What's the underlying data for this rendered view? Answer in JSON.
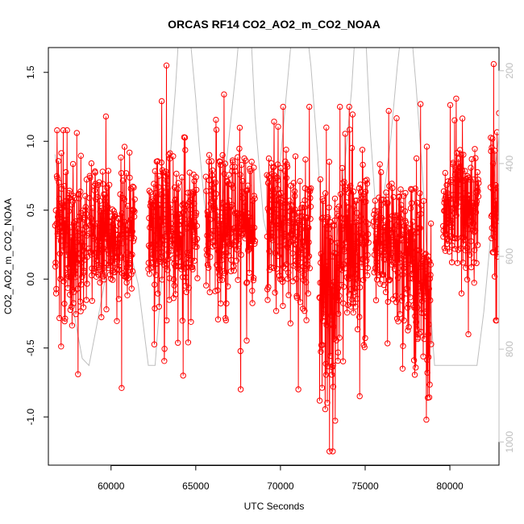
{
  "chart_data": {
    "type": "scatter",
    "title": "ORCAS RF14 CO2_AO2_m_CO2_NOAA",
    "xlabel": "UTC Seconds",
    "ylabel": "CO2_AO2_m_CO2_NOAA",
    "xlim": [
      56300,
      82900
    ],
    "ylim": [
      -1.35,
      1.68
    ],
    "y2lim": [
      150,
      1050
    ],
    "y2_reversed": true,
    "x_ticks": [
      60000,
      65000,
      70000,
      75000,
      80000
    ],
    "x_tick_labels": [
      "60000",
      "65000",
      "70000",
      "75000",
      "80000"
    ],
    "y_ticks": [
      -1.0,
      -0.5,
      0.0,
      0.5,
      1.0,
      1.5
    ],
    "y_tick_labels": [
      "-1.0",
      "-0.5",
      "0.0",
      "0.5",
      "1.0",
      "1.5"
    ],
    "y2_ticks": [
      200,
      400,
      600,
      800,
      1000
    ],
    "y2_tick_labels": [
      "200",
      "400",
      "600",
      "800",
      "1000"
    ],
    "grid": false,
    "colors": {
      "series": "#ff0000",
      "secondary_line": "#bebebe",
      "axis": "#000000",
      "y2_axis": "#bebebe"
    },
    "series": [
      {
        "role": "data",
        "style": "points-and-lines",
        "segments": [
          {
            "x_start": 56700,
            "x_end": 58600,
            "center": 0.25,
            "spread": 0.28,
            "min": -0.69,
            "max": 1.08
          },
          {
            "x_start": 58700,
            "x_end": 61400,
            "center": 0.3,
            "spread": 0.27,
            "min": -0.79,
            "max": 1.18
          },
          {
            "x_start": 62200,
            "x_end": 65100,
            "center": 0.35,
            "spread": 0.3,
            "min": -0.7,
            "max": 1.55
          },
          {
            "x_start": 65600,
            "x_end": 68500,
            "center": 0.4,
            "spread": 0.3,
            "min": -0.8,
            "max": 1.34
          },
          {
            "x_start": 69200,
            "x_end": 71800,
            "center": 0.38,
            "spread": 0.28,
            "min": -0.8,
            "max": 1.25
          },
          {
            "x_start": 72300,
            "x_end": 73400,
            "center": -0.15,
            "spread": 0.45,
            "min": -1.25,
            "max": 1.1
          },
          {
            "x_start": 73400,
            "x_end": 75200,
            "center": 0.3,
            "spread": 0.35,
            "min": -0.85,
            "max": 1.25
          },
          {
            "x_start": 75500,
            "x_end": 77900,
            "center": 0.25,
            "spread": 0.3,
            "min": -0.65,
            "max": 1.22
          },
          {
            "x_start": 77900,
            "x_end": 78900,
            "center": 0.05,
            "spread": 0.4,
            "min": -1.02,
            "max": 1.27
          },
          {
            "x_start": 79600,
            "x_end": 81700,
            "center": 0.5,
            "spread": 0.25,
            "min": -0.4,
            "max": 1.31
          },
          {
            "x_start": 82400,
            "x_end": 82900,
            "center": 0.4,
            "spread": 0.35,
            "min": -0.3,
            "max": 1.56
          }
        ]
      },
      {
        "role": "secondary",
        "axis": "right",
        "style": "line",
        "x": [
          56700,
          57000,
          57300,
          57500,
          57700,
          58000,
          58300,
          58700,
          59100,
          59400,
          59700,
          60000,
          60400,
          60800,
          61200,
          61600,
          62200,
          62400,
          62600,
          63000,
          63400,
          63800,
          64100,
          64400,
          64700,
          65000,
          65200,
          65500,
          65800,
          66200,
          66600,
          67000,
          67400,
          67700,
          68000,
          68300,
          68500,
          69000,
          69500,
          69800,
          70200,
          70600,
          71000,
          71400,
          71800,
          72200,
          72500,
          72900,
          73300,
          73800,
          74200,
          74500,
          75000,
          75300,
          75700,
          76100,
          76500,
          76900,
          77300,
          77600,
          78000,
          78400,
          78700,
          79100,
          79500,
          79800,
          80100,
          80500,
          80900,
          81300,
          81600,
          82000,
          82400,
          82600,
          82900
        ],
        "y": [
          380,
          470,
          560,
          630,
          700,
          760,
          820,
          835,
          760,
          700,
          640,
          600,
          560,
          560,
          600,
          660,
          835,
          835,
          835,
          640,
          430,
          240,
          60,
          60,
          140,
          260,
          360,
          480,
          560,
          540,
          470,
          330,
          190,
          60,
          60,
          150,
          300,
          520,
          600,
          470,
          310,
          150,
          60,
          60,
          190,
          380,
          560,
          780,
          570,
          400,
          240,
          60,
          100,
          330,
          540,
          470,
          350,
          190,
          60,
          60,
          230,
          430,
          640,
          835,
          835,
          835,
          835,
          835,
          835,
          835,
          835,
          720,
          560,
          430,
          340
        ]
      }
    ]
  }
}
